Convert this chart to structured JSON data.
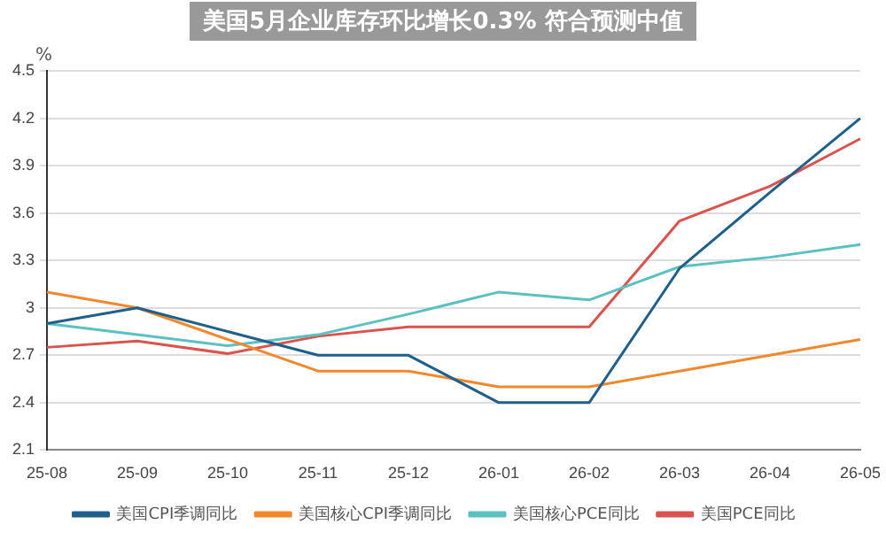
{
  "chart_data": {
    "type": "line",
    "title": "美国5月企业库存环比增长0.3% 符合预测中值",
    "ylabel": "%",
    "categories": [
      "25-08",
      "25-09",
      "25-10",
      "25-11",
      "25-12",
      "26-01",
      "26-02",
      "26-03",
      "26-04",
      "26-05"
    ],
    "series": [
      {
        "name": "美国CPI季调同比",
        "color": "#1f5f8b",
        "values": [
          2.9,
          3.0,
          2.85,
          2.7,
          2.7,
          2.4,
          2.4,
          3.25,
          3.73,
          4.2
        ]
      },
      {
        "name": "美国核心CPI季调同比",
        "color": "#f0882e",
        "values": [
          3.1,
          3.0,
          2.8,
          2.6,
          2.6,
          2.5,
          2.5,
          2.6,
          2.7,
          2.8
        ]
      },
      {
        "name": "美国核心PCE同比",
        "color": "#5bc0c0",
        "values": [
          2.9,
          2.83,
          2.76,
          2.83,
          2.96,
          3.1,
          3.05,
          3.26,
          3.32,
          3.4
        ]
      },
      {
        "name": "美国PCE同比",
        "color": "#d9534f",
        "values": [
          2.75,
          2.79,
          2.71,
          2.82,
          2.88,
          2.88,
          2.88,
          3.55,
          3.77,
          4.07
        ]
      }
    ],
    "ylim": [
      2.1,
      4.5
    ],
    "yticks": [
      2.1,
      2.4,
      2.7,
      3,
      3.3,
      3.6,
      3.9,
      4.2,
      4.5
    ],
    "grid": "y",
    "legend": "bottom",
    "marker": "none",
    "line_style": "solid"
  }
}
